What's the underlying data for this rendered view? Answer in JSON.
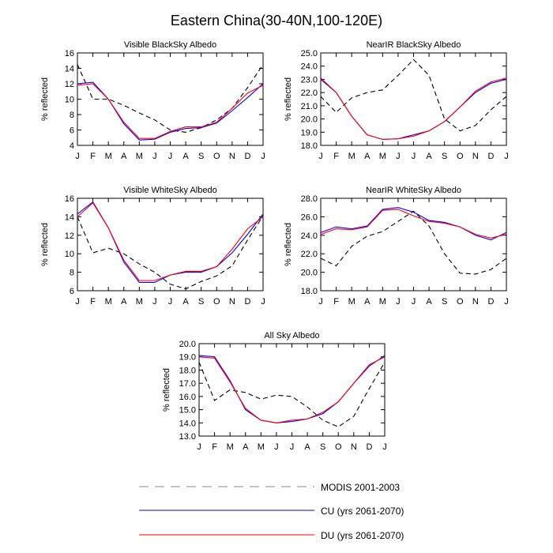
{
  "figure": {
    "title": "Eastern China(30-40N,100-120E)"
  },
  "legend": [
    {
      "key": "modis",
      "label": "MODIS 2001-2003",
      "color": "#000000",
      "dash": "dashed"
    },
    {
      "key": "cu",
      "label": "CU (yrs 2061-2070)",
      "color": "#0000ff",
      "dash": "solid"
    },
    {
      "key": "du",
      "label": "DU (yrs 2061-2070)",
      "color": "#ff0000",
      "dash": "solid"
    }
  ],
  "chart_data": [
    {
      "type": "line",
      "title": "Visible BlackSky Albedo",
      "ylabel": "% reflected",
      "x": [
        "J",
        "F",
        "M",
        "A",
        "M",
        "J",
        "J",
        "A",
        "S",
        "O",
        "N",
        "D",
        "J"
      ],
      "ylim": [
        4,
        16
      ],
      "yticks": [
        4,
        6,
        8,
        10,
        12,
        14,
        16
      ],
      "ytick_labels": [
        "4",
        "6",
        "8",
        "10",
        "12",
        "14",
        "16"
      ],
      "series": [
        {
          "key": "modis",
          "values": [
            14.5,
            10.0,
            10.0,
            9.2,
            8.2,
            7.3,
            6.0,
            5.7,
            6.3,
            7.3,
            8.8,
            11.5,
            14.5
          ]
        },
        {
          "key": "cu",
          "values": [
            12.0,
            12.2,
            10.0,
            6.8,
            4.7,
            4.8,
            5.7,
            6.2,
            6.3,
            6.9,
            8.5,
            10.2,
            12.0
          ]
        },
        {
          "key": "du",
          "values": [
            11.8,
            12.0,
            10.0,
            7.0,
            4.9,
            4.9,
            5.8,
            6.4,
            6.4,
            7.0,
            8.8,
            10.8,
            11.8
          ]
        }
      ]
    },
    {
      "type": "line",
      "title": "NearIR BlackSky Albedo",
      "ylabel": "% reflected",
      "x": [
        "J",
        "F",
        "M",
        "A",
        "M",
        "J",
        "J",
        "A",
        "S",
        "O",
        "N",
        "D",
        "J"
      ],
      "ylim": [
        18,
        25
      ],
      "yticks": [
        18,
        19,
        20,
        21,
        22,
        23,
        24,
        25
      ],
      "ytick_labels": [
        "18.0",
        "19.0",
        "20.0",
        "21.0",
        "22.0",
        "23.0",
        "24.0",
        "25.0"
      ],
      "series": [
        {
          "key": "modis",
          "values": [
            21.7,
            20.5,
            21.6,
            22.0,
            22.2,
            23.3,
            24.5,
            23.3,
            20.0,
            19.1,
            19.5,
            20.7,
            21.7
          ]
        },
        {
          "key": "cu",
          "values": [
            23.0,
            22.0,
            20.2,
            18.8,
            18.45,
            18.5,
            18.8,
            19.1,
            19.8,
            20.9,
            22.0,
            22.7,
            23.0
          ]
        },
        {
          "key": "du",
          "values": [
            23.1,
            22.0,
            20.2,
            18.8,
            18.45,
            18.5,
            18.7,
            19.1,
            19.8,
            20.9,
            22.1,
            22.8,
            23.1
          ]
        }
      ]
    },
    {
      "type": "line",
      "title": "Visible WhiteSky Albedo",
      "ylabel": "% reflected",
      "x": [
        "J",
        "F",
        "M",
        "A",
        "M",
        "J",
        "J",
        "A",
        "S",
        "O",
        "N",
        "D",
        "J"
      ],
      "ylim": [
        6,
        16
      ],
      "yticks": [
        6,
        8,
        10,
        12,
        14,
        16
      ],
      "ytick_labels": [
        "6",
        "8",
        "10",
        "12",
        "14",
        "16"
      ],
      "series": [
        {
          "key": "modis",
          "values": [
            14.0,
            10.1,
            10.6,
            10.0,
            8.9,
            8.0,
            6.7,
            6.2,
            7.0,
            7.6,
            8.7,
            11.5,
            14.1
          ]
        },
        {
          "key": "cu",
          "values": [
            14.3,
            15.6,
            12.8,
            9.1,
            6.9,
            6.9,
            7.7,
            8.0,
            8.0,
            8.6,
            10.1,
            12.1,
            14.3
          ]
        },
        {
          "key": "du",
          "values": [
            14.0,
            15.5,
            12.8,
            9.3,
            7.1,
            7.1,
            7.7,
            8.1,
            8.1,
            8.6,
            10.5,
            12.7,
            14.0
          ]
        }
      ]
    },
    {
      "type": "line",
      "title": "NearIR WhiteSky Albedo",
      "ylabel": "% reflected",
      "x": [
        "J",
        "F",
        "M",
        "A",
        "M",
        "J",
        "J",
        "A",
        "S",
        "O",
        "N",
        "D",
        "J"
      ],
      "ylim": [
        18,
        28
      ],
      "yticks": [
        18,
        20,
        22,
        24,
        26,
        28
      ],
      "ytick_labels": [
        "18.0",
        "20.0",
        "22.0",
        "24.0",
        "26.0",
        "28.0"
      ],
      "series": [
        {
          "key": "modis",
          "values": [
            21.5,
            20.7,
            22.8,
            23.9,
            24.4,
            25.5,
            26.6,
            25.0,
            22.0,
            19.9,
            19.8,
            20.3,
            21.5
          ]
        },
        {
          "key": "cu",
          "values": [
            24.3,
            24.9,
            24.7,
            25.0,
            26.8,
            27.0,
            26.5,
            25.6,
            25.4,
            24.9,
            24.0,
            23.5,
            24.3
          ]
        },
        {
          "key": "du",
          "values": [
            24.1,
            24.7,
            24.6,
            24.9,
            26.7,
            26.8,
            26.1,
            25.5,
            25.3,
            24.9,
            24.1,
            23.7,
            24.1
          ]
        }
      ]
    },
    {
      "type": "line",
      "title": "All Sky Albedo",
      "ylabel": "% reflected",
      "x": [
        "J",
        "F",
        "M",
        "A",
        "M",
        "J",
        "J",
        "A",
        "S",
        "O",
        "N",
        "D",
        "J"
      ],
      "ylim": [
        13,
        20
      ],
      "yticks": [
        13,
        14,
        15,
        16,
        17,
        18,
        19,
        20
      ],
      "ytick_labels": [
        "13.0",
        "14.0",
        "15.0",
        "16.0",
        "17.0",
        "18.0",
        "19.0",
        "20.0"
      ],
      "series": [
        {
          "key": "modis",
          "values": [
            18.6,
            15.7,
            16.5,
            16.3,
            15.8,
            16.1,
            16.0,
            15.2,
            14.2,
            13.7,
            14.5,
            16.6,
            18.6
          ]
        },
        {
          "key": "cu",
          "values": [
            19.1,
            19.0,
            17.2,
            15.0,
            14.2,
            14.0,
            14.1,
            14.3,
            14.7,
            15.6,
            17.0,
            18.3,
            19.1
          ]
        },
        {
          "key": "du",
          "values": [
            19.0,
            18.9,
            17.1,
            15.1,
            14.2,
            14.0,
            14.2,
            14.3,
            14.8,
            15.6,
            17.0,
            18.4,
            19.0
          ]
        }
      ]
    }
  ]
}
